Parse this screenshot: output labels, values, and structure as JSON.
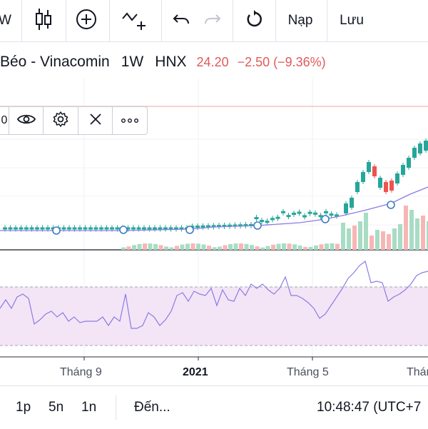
{
  "toolbar": {
    "partial_label": "W",
    "load_label": "Nạp",
    "save_label": "Lưu"
  },
  "symbol": {
    "name": "Béo - Vinacomin",
    "interval": "1W",
    "exchange": "HNX",
    "price": "24.20",
    "change": "−2.50 (−9.36%)"
  },
  "overlay": {
    "partial_text": "0"
  },
  "timescale": {
    "labels": [
      "Tháng 9",
      "2021",
      "Tháng 5",
      "Tháng"
    ]
  },
  "bottombar": {
    "ranges": [
      "1p",
      "5n",
      "1n"
    ],
    "goto_label": "Đến...",
    "clock": "10:48:47 (UTC+7"
  },
  "colors": {
    "up": "#26a69a",
    "down": "#ef5350",
    "ma": "#8c7ae6",
    "rsi_band": "#f3e5f5"
  }
}
